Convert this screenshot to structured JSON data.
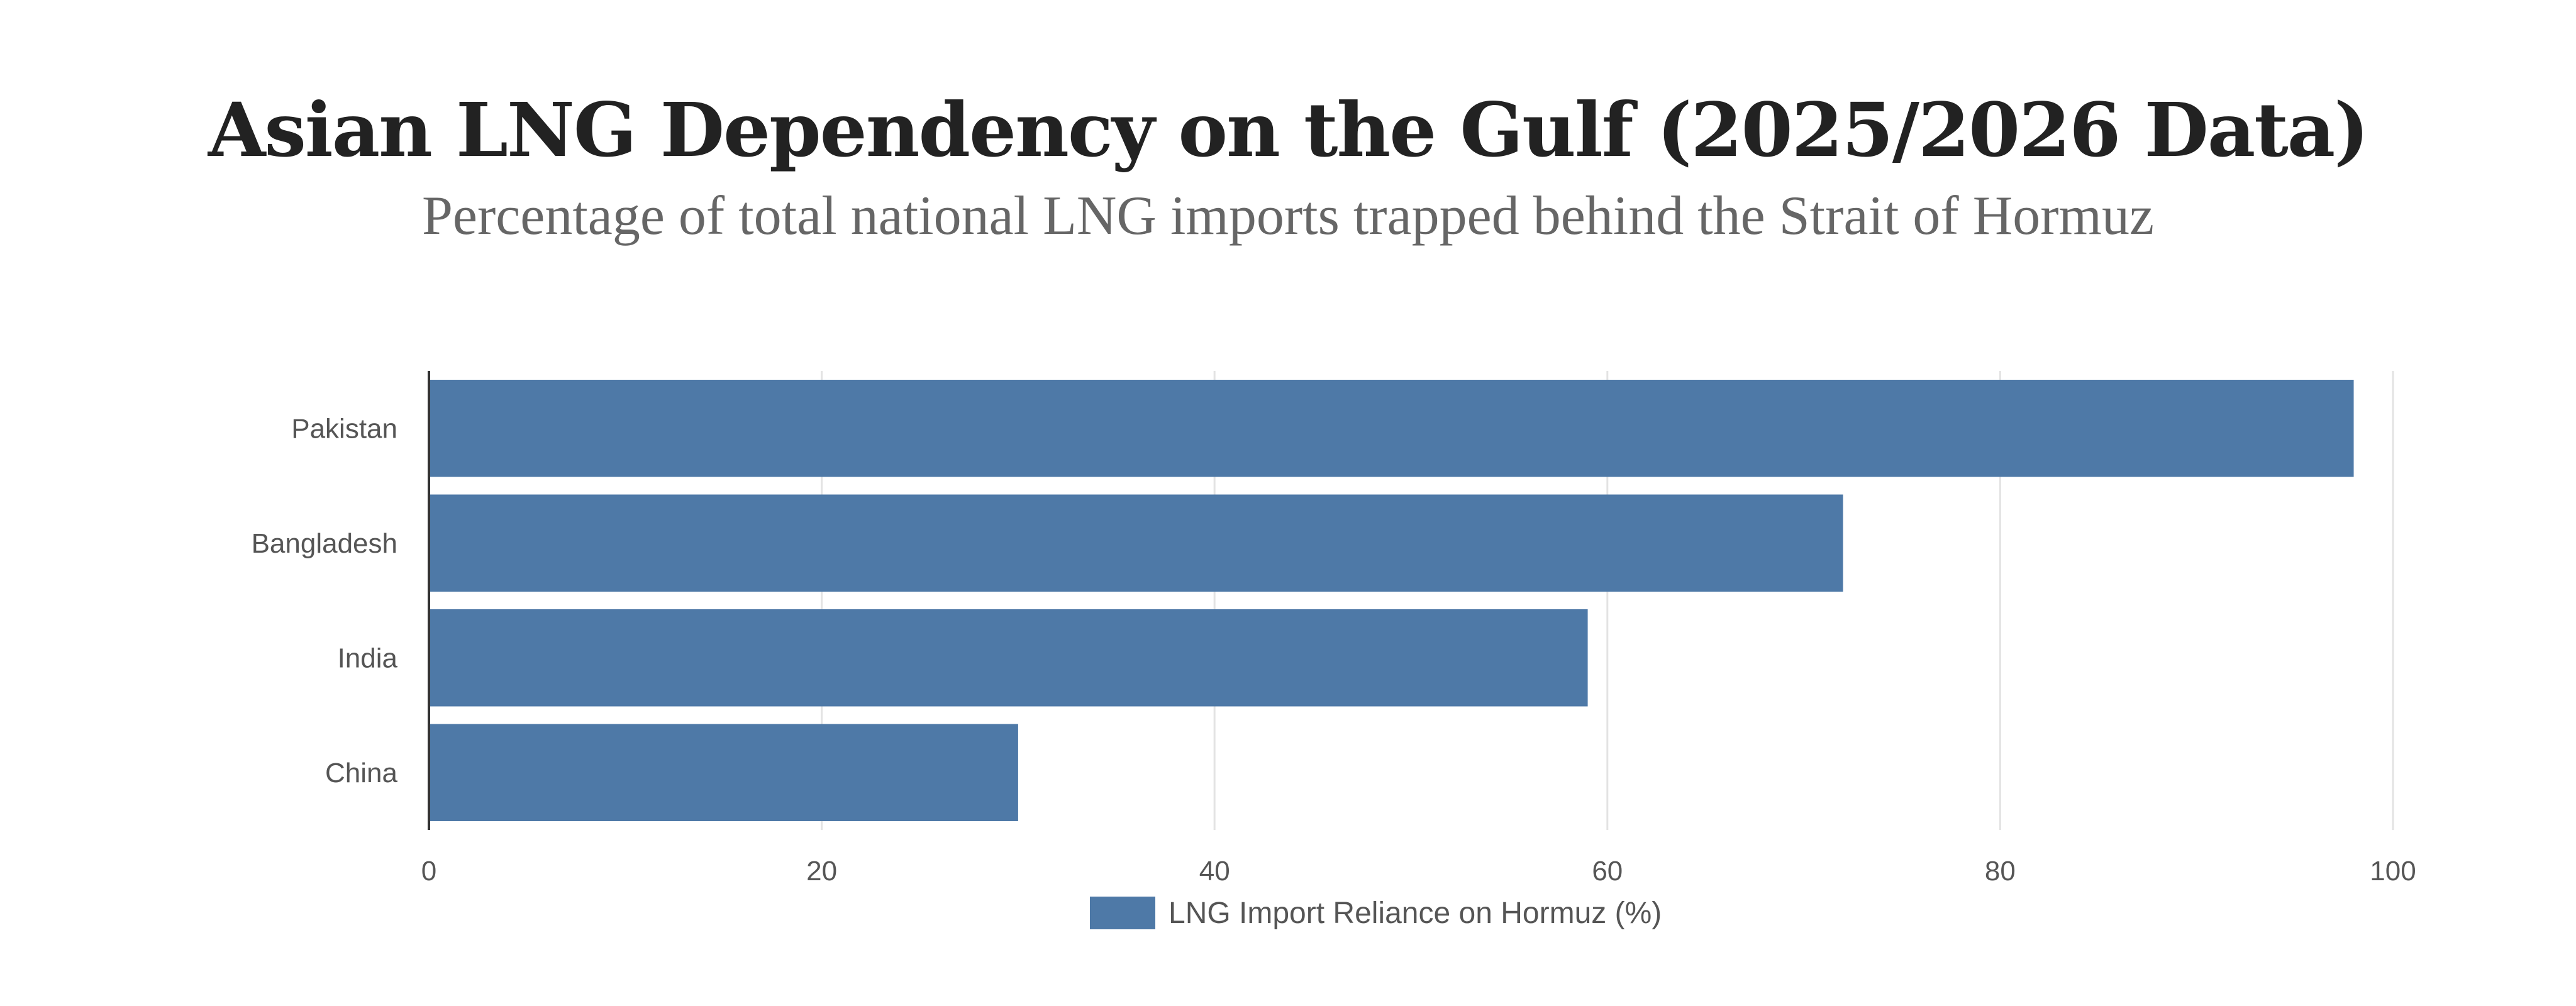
{
  "title": "Asian LNG Dependency on the Gulf (2025/2026 Data)",
  "subtitle": "Percentage of total national LNG imports trapped behind the Strait of Hormuz",
  "colors": {
    "bar": "#4e79a7",
    "grid": "#e3e3e3",
    "axis": "#333333",
    "tick_text": "#555555",
    "title": "#222222",
    "subtitle": "#666666"
  },
  "chart_data": {
    "type": "bar",
    "orientation": "horizontal",
    "title": "Asian LNG Dependency on the Gulf (2025/2026 Data)",
    "subtitle": "Percentage of total national LNG imports trapped behind the Strait of Hormuz",
    "categories": [
      "Pakistan",
      "Bangladesh",
      "India",
      "China"
    ],
    "series": [
      {
        "name": "LNG Import Reliance on Hormuz (%)",
        "values": [
          98,
          72,
          59,
          30
        ]
      }
    ],
    "xlim": [
      0,
      100
    ],
    "xticks": [
      "0",
      "20",
      "40",
      "60",
      "80",
      "100"
    ],
    "xlabel": "",
    "ylabel": "",
    "grid": true,
    "legend": "bottom-center"
  }
}
